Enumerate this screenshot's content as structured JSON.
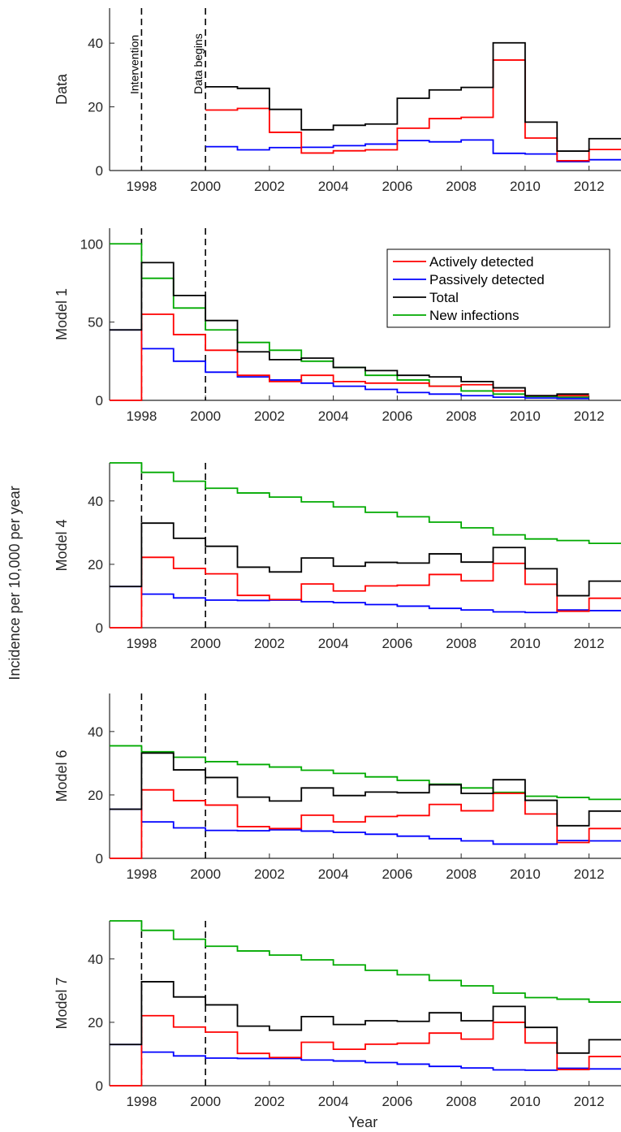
{
  "figure": {
    "ylabel": "Incidence per 10,000 per year",
    "xlabel": "Year"
  },
  "chart_data": [
    {
      "type": "line",
      "step": true,
      "ylabel": "Data",
      "xlim": [
        1997,
        2013
      ],
      "ylim": [
        0,
        51
      ],
      "yticks": [
        0,
        20,
        40
      ],
      "xticks": [
        1998,
        2000,
        2002,
        2004,
        2006,
        2008,
        2010,
        2012
      ],
      "vlines": [
        1998,
        2000
      ],
      "annotations": [
        "Intervention",
        "Data begins"
      ],
      "series": [
        {
          "key": "active",
          "color": "#ff0000",
          "x_start": 2000,
          "values": [
            19,
            19.5,
            12,
            5.5,
            6.2,
            6.5,
            13.3,
            16.3,
            16.7,
            34.7,
            10.2,
            3.1,
            6.6
          ]
        },
        {
          "key": "passive",
          "color": "#0000ff",
          "x_start": 2000,
          "values": [
            7.5,
            6.5,
            7.2,
            7.3,
            7.8,
            8.3,
            9.4,
            9.0,
            9.6,
            5.4,
            5.2,
            2.8,
            3.4
          ]
        },
        {
          "key": "total",
          "color": "#000000",
          "x_start": 2000,
          "values": [
            26.3,
            25.8,
            19.2,
            12.8,
            14.2,
            14.6,
            22.7,
            25.3,
            26.1,
            40.1,
            15.2,
            6.1,
            10.0
          ]
        }
      ]
    },
    {
      "type": "line",
      "step": true,
      "ylabel": "Model 1",
      "xlim": [
        1997,
        2013
      ],
      "ylim": [
        0,
        110
      ],
      "yticks": [
        0,
        50,
        100
      ],
      "xticks": [
        1998,
        2000,
        2002,
        2004,
        2006,
        2008,
        2010,
        2012
      ],
      "vlines": [
        1998,
        2000
      ],
      "legend_position": "top-right",
      "series": [
        {
          "key": "active",
          "name": "Actively detected",
          "color": "#ff0000",
          "x_start": 1997,
          "values": [
            0,
            55,
            42,
            32,
            16,
            12,
            16,
            12,
            11,
            11,
            9,
            10,
            6,
            3,
            3
          ]
        },
        {
          "key": "passive",
          "name": "Passively detected",
          "color": "#0000ff",
          "x_start": 1997,
          "values": [
            45,
            33,
            25,
            18,
            15,
            13,
            11,
            9,
            7,
            5,
            4,
            3,
            2,
            1.5,
            1.2
          ]
        },
        {
          "key": "total",
          "name": "Total",
          "color": "#000000",
          "x_start": 1997,
          "values": [
            45,
            88,
            67,
            51,
            31,
            26,
            27,
            21,
            19,
            16,
            15,
            12,
            8,
            3,
            4
          ]
        },
        {
          "key": "new",
          "name": "New infections",
          "color": "#00aa00",
          "x_start": 1997,
          "values": [
            100,
            78,
            59,
            45,
            37,
            32,
            25,
            21,
            16,
            13,
            9,
            6,
            4,
            2.5,
            2
          ]
        }
      ]
    },
    {
      "type": "line",
      "step": true,
      "ylabel": "Model 4",
      "xlim": [
        1997,
        2013
      ],
      "ylim": [
        0,
        52
      ],
      "yticks": [
        0,
        20,
        40
      ],
      "xticks": [
        1998,
        2000,
        2002,
        2004,
        2006,
        2008,
        2010,
        2012
      ],
      "vlines": [
        1998,
        2000
      ],
      "series": [
        {
          "key": "active",
          "color": "#ff0000",
          "x_start": 1997,
          "values": [
            0,
            22.2,
            18.7,
            17,
            10.2,
            8.9,
            13.8,
            11.6,
            13.2,
            13.4,
            16.8,
            14.8,
            20.3,
            13.7,
            5.2,
            9.3
          ]
        },
        {
          "key": "passive",
          "color": "#0000ff",
          "x_start": 1997,
          "values": [
            13,
            10.6,
            9.4,
            8.7,
            8.6,
            8.7,
            8.2,
            7.9,
            7.3,
            6.8,
            6.1,
            5.6,
            5.0,
            4.8,
            5.6,
            5.4
          ]
        },
        {
          "key": "total",
          "color": "#000000",
          "x_start": 1997,
          "values": [
            13,
            33,
            28.2,
            25.7,
            19.1,
            17.6,
            22,
            19.4,
            20.6,
            20.4,
            23.3,
            20.7,
            25.3,
            18.6,
            10.1,
            14.7
          ]
        },
        {
          "key": "new",
          "color": "#00aa00",
          "x_start": 1997,
          "values": [
            52,
            49,
            46.2,
            44,
            42.5,
            41.2,
            39.7,
            38.1,
            36.4,
            35,
            33.3,
            31.5,
            29.3,
            28,
            27.5,
            26.6
          ]
        }
      ]
    },
    {
      "type": "line",
      "step": true,
      "ylabel": "Model 6",
      "xlim": [
        1997,
        2013
      ],
      "ylim": [
        0,
        52
      ],
      "yticks": [
        0,
        20,
        40
      ],
      "xticks": [
        1998,
        2000,
        2002,
        2004,
        2006,
        2008,
        2010,
        2012
      ],
      "vlines": [
        1998,
        2000
      ],
      "series": [
        {
          "key": "active",
          "color": "#ff0000",
          "x_start": 1997,
          "values": [
            0,
            21.6,
            18.2,
            16.8,
            10,
            9.4,
            13.6,
            11.5,
            13.2,
            13.5,
            17,
            15,
            20.5,
            14,
            5,
            9.4
          ]
        },
        {
          "key": "passive",
          "color": "#0000ff",
          "x_start": 1997,
          "values": [
            15.5,
            11.5,
            9.6,
            8.8,
            8.7,
            9,
            8.6,
            8.2,
            7.6,
            7.0,
            6.2,
            5.5,
            4.5,
            4.5,
            5.6,
            5.5
          ]
        },
        {
          "key": "total",
          "color": "#000000",
          "x_start": 1997,
          "values": [
            15.5,
            33.2,
            27.9,
            25.5,
            19.3,
            18.1,
            22.2,
            19.8,
            20.9,
            20.7,
            23.2,
            20.5,
            24.8,
            18.3,
            10.3,
            14.9
          ]
        },
        {
          "key": "new",
          "color": "#00aa00",
          "x_start": 1997,
          "values": [
            35.5,
            33.6,
            31.9,
            30.5,
            29.6,
            28.8,
            27.8,
            26.8,
            25.7,
            24.6,
            23.4,
            22.2,
            20.8,
            19.6,
            19.2,
            18.6
          ]
        }
      ]
    },
    {
      "type": "line",
      "step": true,
      "ylabel": "Model 7",
      "xlim": [
        1997,
        2013
      ],
      "ylim": [
        0,
        52
      ],
      "yticks": [
        0,
        20,
        40
      ],
      "xticks": [
        1998,
        2000,
        2002,
        2004,
        2006,
        2008,
        2010,
        2012
      ],
      "vlines": [
        1998,
        2000
      ],
      "series": [
        {
          "key": "active",
          "color": "#ff0000",
          "x_start": 1997,
          "values": [
            0,
            22.1,
            18.5,
            16.9,
            10.2,
            8.9,
            13.7,
            11.5,
            13.1,
            13.4,
            16.6,
            14.7,
            20,
            13.5,
            5.1,
            9.2
          ]
        },
        {
          "key": "passive",
          "color": "#0000ff",
          "x_start": 1997,
          "values": [
            13,
            10.6,
            9.4,
            8.7,
            8.6,
            8.6,
            8.1,
            7.8,
            7.3,
            6.8,
            6.1,
            5.6,
            5.0,
            4.9,
            5.5,
            5.3
          ]
        },
        {
          "key": "total",
          "color": "#000000",
          "x_start": 1997,
          "values": [
            13,
            32.8,
            28,
            25.5,
            18.8,
            17.5,
            21.8,
            19.3,
            20.5,
            20.3,
            23,
            20.5,
            25,
            18.4,
            10.3,
            14.5
          ]
        },
        {
          "key": "new",
          "color": "#00aa00",
          "x_start": 1997,
          "values": [
            52,
            49,
            46.2,
            44,
            42.5,
            41.2,
            39.7,
            38.1,
            36.4,
            35,
            33.2,
            31.5,
            29.2,
            27.8,
            27.3,
            26.4
          ]
        }
      ]
    }
  ]
}
